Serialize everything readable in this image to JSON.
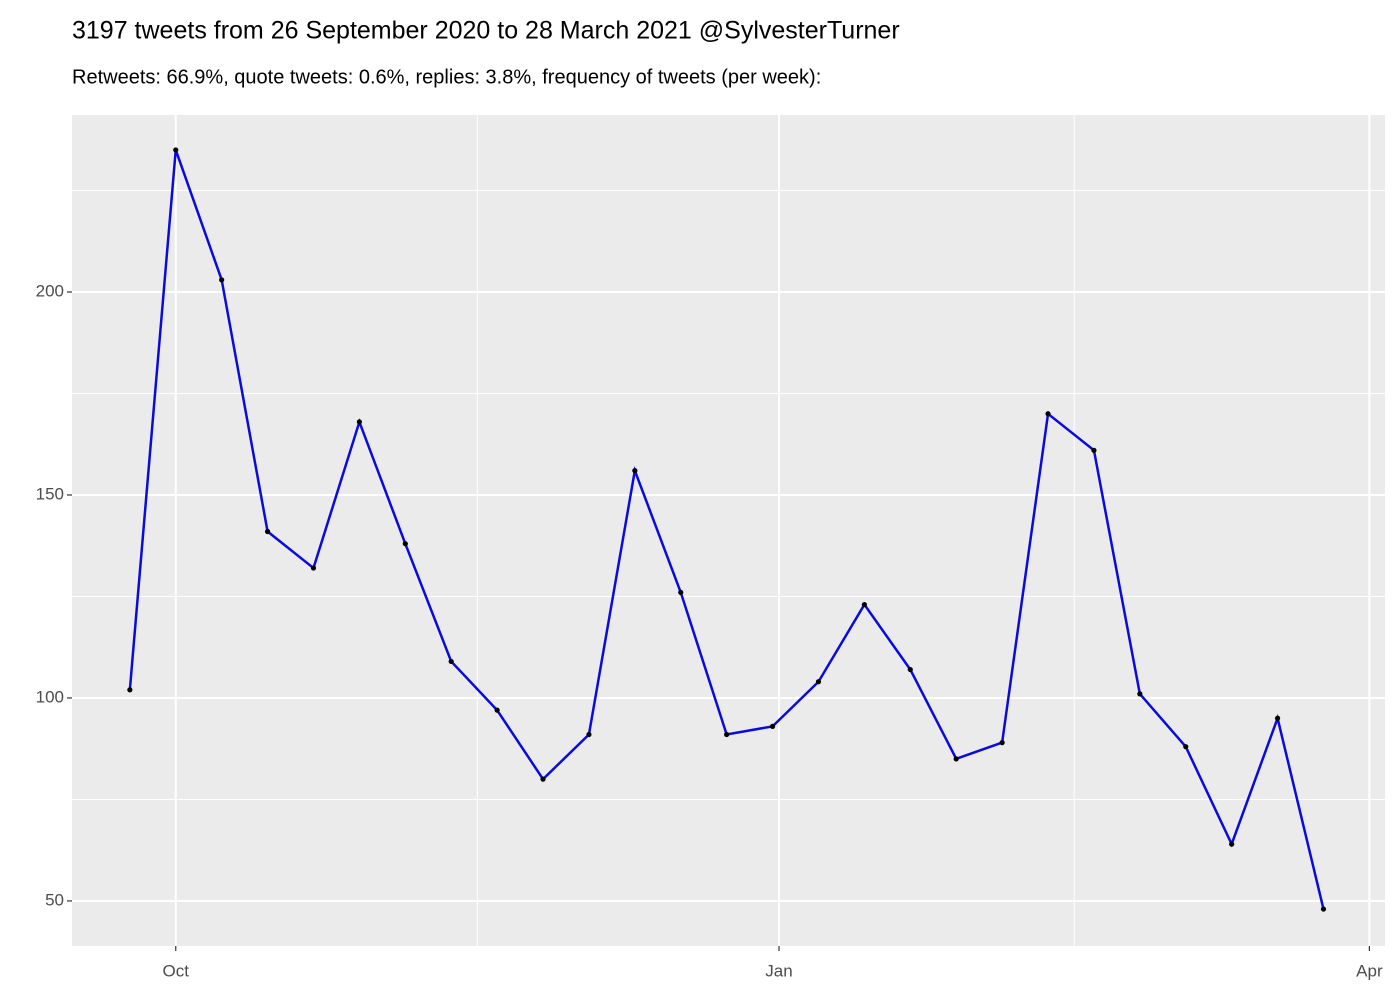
{
  "chart_data": {
    "type": "line",
    "title": "3197 tweets from 26 September 2020 to 28 March 2021 @SylvesterTurner",
    "subtitle": "Retweets: 66.9%, quote tweets: 0.6%, replies: 3.8%, frequency of tweets (per week):",
    "x": [
      0,
      1,
      2,
      3,
      4,
      5,
      6,
      7,
      8,
      9,
      10,
      11,
      12,
      13,
      14,
      15,
      16,
      17,
      18,
      19,
      20,
      21,
      22,
      23,
      24,
      25,
      26
    ],
    "series": [
      {
        "color": "#0a0adc",
        "point_color": "#000000",
        "values": [
          102,
          235,
          203,
          141,
          132,
          168,
          138,
          109,
          97,
          80,
          91,
          156,
          126,
          91,
          93,
          104,
          123,
          107,
          85,
          89,
          170,
          161,
          101,
          88,
          64,
          95,
          48
        ]
      }
    ],
    "xlim": [
      -1.26,
      27.34
    ],
    "xticks": [
      {
        "value": 1,
        "label": "Oct"
      },
      {
        "value": 14.14,
        "label": "Jan"
      },
      {
        "value": 27,
        "label": "Apr"
      }
    ],
    "ylim": [
      38.9,
      243.6
    ],
    "yticks": [
      50,
      100,
      150,
      200
    ],
    "grid": true,
    "minor_grid": true
  }
}
